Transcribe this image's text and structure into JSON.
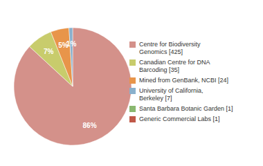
{
  "chart_data": {
    "type": "pie",
    "labels": [
      "Centre for Biodiversity\nGenomics [425]",
      "Canadian Centre for DNA\nBarcoding [35]",
      "Mined from GenBank, NCBI [24]",
      "University of California,\nBerkeley [7]",
      "Santa Barbara Botanic Garden [1]",
      "Generic Commercial Labs [1]"
    ],
    "values": [
      86,
      7,
      5,
      1,
      0,
      0
    ],
    "value_labels": [
      "86%",
      "7%",
      "5%",
      "1%",
      null,
      null
    ],
    "colors": [
      "#d4918a",
      "#c8cc6c",
      "#e8954a",
      "#8ab0cc",
      "#8ab870",
      "#c05848"
    ],
    "data_labels": true,
    "legend": "right"
  }
}
